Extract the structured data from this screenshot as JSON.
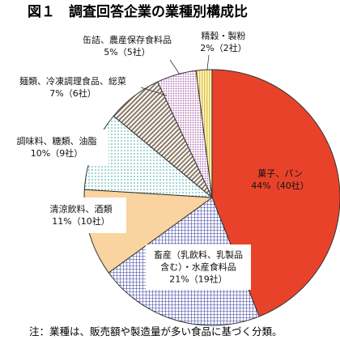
{
  "chart_data": {
    "type": "pie",
    "title": "図１　調査回答企業の業種別構成比",
    "note": "注：業種は、販売額や製造量が多い食品に基づく分類。",
    "slices": [
      {
        "label_lines": [
          "菓子、パン"
        ],
        "value_text": "44%（40社）",
        "percent": 44,
        "companies": 40,
        "color": "#e8432a",
        "pattern": "solid"
      },
      {
        "label_lines": [
          "畜産（乳飲料、乳製品",
          "含む）・水産食料品"
        ],
        "value_text": "21%（19社）",
        "percent": 21,
        "companies": 19,
        "color": "#3b3fa0",
        "pattern": "grid"
      },
      {
        "label_lines": [
          "清涼飲料、酒類"
        ],
        "value_text": "11%（10社）",
        "percent": 11,
        "companies": 10,
        "color": "#f9d3a0",
        "pattern": "solid"
      },
      {
        "label_lines": [
          "調味料、糖類、油脂"
        ],
        "value_text": "10%（9社）",
        "percent": 10,
        "companies": 9,
        "color": "#5fb8b8",
        "pattern": "dots"
      },
      {
        "label_lines": [
          "麺類、冷凍調理食品、総菜"
        ],
        "value_text": "7%（6社）",
        "percent": 7,
        "companies": 6,
        "color": "#8a7a66",
        "pattern": "hatch"
      },
      {
        "label_lines": [
          "缶詰、農産保存食料品"
        ],
        "value_text": "5%（5社）",
        "percent": 5,
        "companies": 5,
        "color": "#b06ab0",
        "pattern": "dots"
      },
      {
        "label_lines": [
          "精穀・製粉"
        ],
        "value_text": "2%（2社）",
        "percent": 2,
        "companies": 2,
        "color": "#e0c040",
        "pattern": "vstripe"
      }
    ]
  }
}
